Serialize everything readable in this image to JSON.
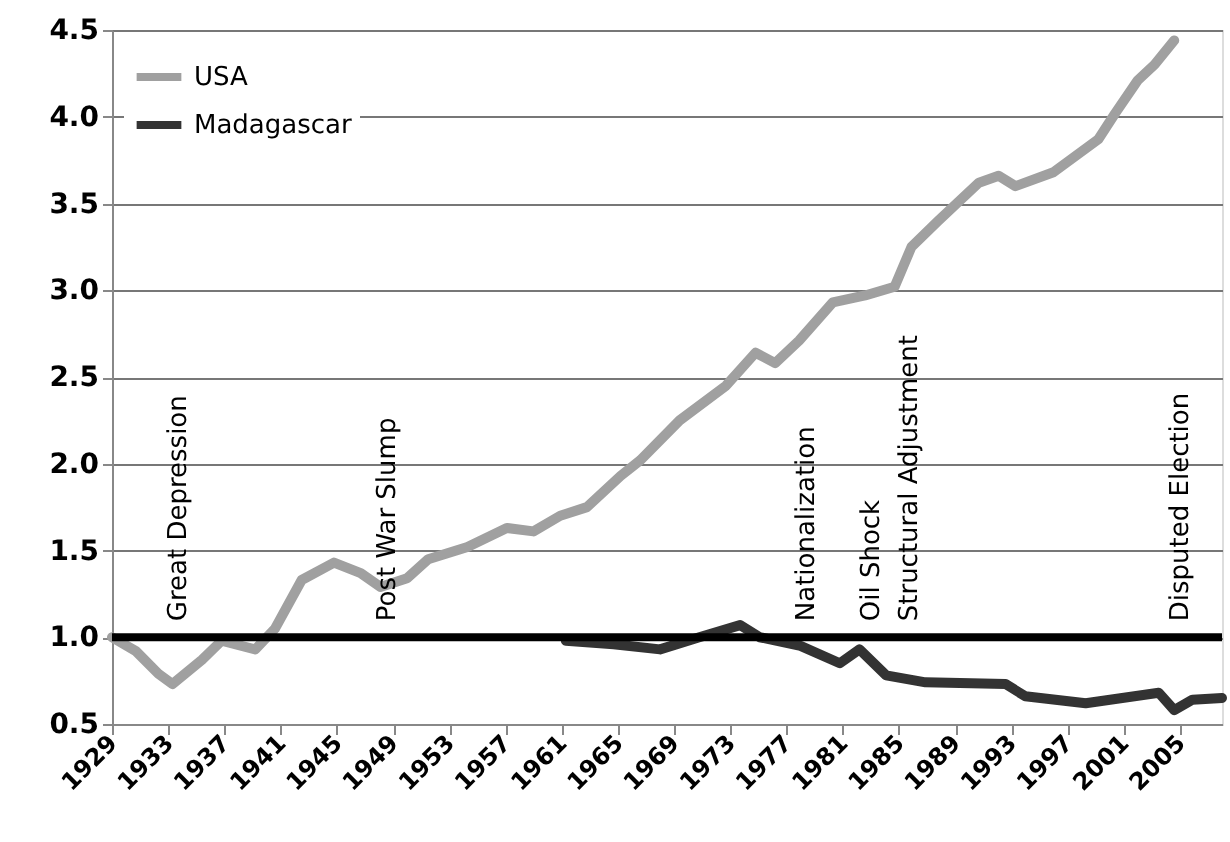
{
  "chart_data": {
    "type": "line",
    "xlim": [
      1929,
      2008
    ],
    "xticks": [
      1929,
      1933,
      1937,
      1941,
      1945,
      1949,
      1953,
      1957,
      1961,
      1965,
      1969,
      1973,
      1977,
      1981,
      1985,
      1989,
      1993,
      1997,
      2001,
      2005
    ],
    "ylim": [
      0.5,
      4.5
    ],
    "yticks": [
      0.5,
      {
        "value": 1,
        "label": "1.0"
      },
      1.5,
      {
        "value": 2,
        "label": "2.0"
      },
      2.5,
      {
        "value": 3,
        "label": "3.0"
      },
      3.5,
      {
        "value": 4,
        "label": "4.0"
      },
      4.5
    ],
    "grid": "y",
    "legend": "top left",
    "series": [
      {
        "name": "USA",
        "color": "#a0a0a0",
        "x": [
          1929,
          1930.7,
          1932.3,
          1933.3,
          1935.4,
          1936.8,
          1939.2,
          1940.6,
          1942.5,
          1944.8,
          1946.7,
          1948.1,
          1950,
          1951.5,
          1954.3,
          1957.1,
          1959,
          1960.9,
          1962.8,
          1965.2,
          1966.6,
          1969.4,
          1972.7,
          1974.8,
          1976.2,
          1977.9,
          1980.3,
          1982.6,
          1984.7,
          1985.9,
          1987.8,
          1990.7,
          1992.1,
          1993.3,
          1996,
          1999.2,
          2000.4,
          2002,
          2003.2,
          2004.6
        ],
        "values": [
          1.0,
          0.92,
          0.79,
          0.73,
          0.87,
          0.98,
          0.93,
          1.05,
          1.33,
          1.43,
          1.37,
          1.29,
          1.34,
          1.45,
          1.52,
          1.63,
          1.61,
          1.7,
          1.75,
          1.93,
          2.02,
          2.25,
          2.45,
          2.64,
          2.58,
          2.71,
          2.93,
          2.97,
          3.02,
          3.25,
          3.4,
          3.62,
          3.66,
          3.6,
          3.68,
          3.87,
          4.02,
          4.21,
          4.3,
          4.44
        ]
      },
      {
        "name": "Madagascar",
        "color": "#333333",
        "x": [
          1961.3,
          1964.7,
          1968,
          1970.8,
          1973.7,
          1975.1,
          1978,
          1980.8,
          1982.2,
          1984.1,
          1986.9,
          1992.6,
          1994,
          1998.3,
          2003.5,
          2004.6,
          2005.9,
          2008
        ],
        "values": [
          0.98,
          0.96,
          0.93,
          1.0,
          1.07,
          1.0,
          0.95,
          0.85,
          0.93,
          0.78,
          0.74,
          0.73,
          0.66,
          0.62,
          0.68,
          0.58,
          0.64,
          0.65
        ]
      }
    ],
    "ref_lines": [
      {
        "axis": "y",
        "value": 1.0,
        "color": "#000000"
      }
    ],
    "annotations": [
      {
        "text": "Great Depression",
        "x": 1933.7,
        "y": 1.0
      },
      {
        "text": "Post War Slump",
        "x": 1948.6,
        "y": 1.0
      },
      {
        "text": "Nationalization",
        "x": 1978.4,
        "y": 1.0
      },
      {
        "text": "Oil Shock",
        "x": 1983,
        "y": 1.0
      },
      {
        "text": "Structural Adjustment",
        "x": 1985.7,
        "y": 1.0
      },
      {
        "text": "Disputed Election",
        "x": 2005,
        "y": 1.0
      }
    ]
  }
}
